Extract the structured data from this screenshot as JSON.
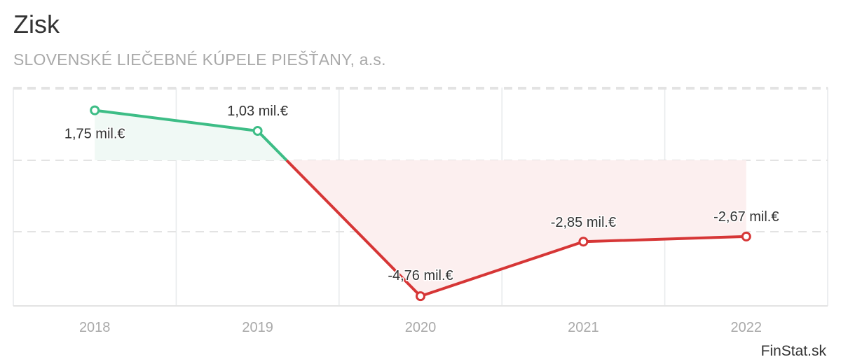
{
  "header": {
    "title": "Zisk",
    "subtitle": "SLOVENSKÉ LIEČEBNÉ KÚPELE PIEŠŤANY, a.s."
  },
  "footer": {
    "brand": "FinStat.sk"
  },
  "colors": {
    "positive": "#3dbd86",
    "negative": "#d63636",
    "positive_fill": "#f0f9f5",
    "negative_fill": "#fcefef",
    "grid": "#e3e3e3",
    "tick": "#a9a9a9",
    "label": "#333333"
  },
  "chart_data": {
    "type": "line",
    "title": "Zisk",
    "subtitle": "SLOVENSKÉ LIEČEBNÉ KÚPELE PIEŠŤANY, a.s.",
    "xlabel": "",
    "ylabel": "",
    "categories": [
      "2018",
      "2019",
      "2020",
      "2021",
      "2022"
    ],
    "series": [
      {
        "name": "Zisk",
        "unit": "mil. €",
        "values": [
          1.75,
          1.03,
          -4.76,
          -2.85,
          -2.67
        ],
        "labels": [
          "1,75 mil.€",
          "1,03 mil.€",
          "-4,76 mil.€",
          "-2,85 mil.€",
          "-2,67 mil.€"
        ]
      }
    ],
    "ylim": [
      -5.1,
      2.55
    ],
    "y_gridlines": [
      2.5,
      0,
      -2.5
    ],
    "y_tick_labels_shown": false,
    "grid": true,
    "legend": "none",
    "area_fill": "to-zero",
    "color_rule": "green above zero, red below zero"
  }
}
